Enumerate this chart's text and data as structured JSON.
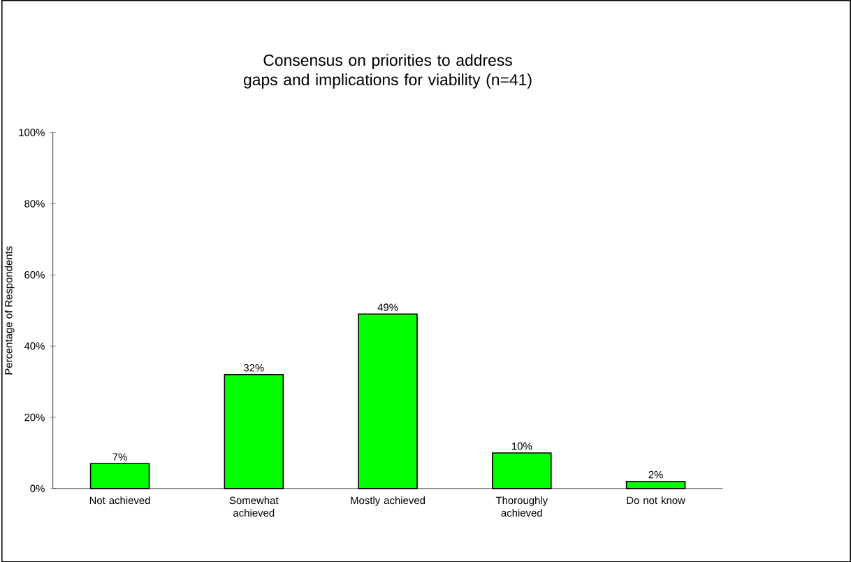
{
  "chart_data": {
    "type": "bar",
    "title": "Consensus on priorities to address gaps and implications for viability (n=41)",
    "ylabel": "Percentage of Respondents",
    "categories": [
      "Not achieved",
      "Somewhat achieved",
      "Mostly achieved",
      "Thoroughly achieved",
      "Do not know"
    ],
    "values": [
      7,
      32,
      49,
      10,
      2
    ],
    "value_labels": [
      "7%",
      "32%",
      "49%",
      "10%",
      "2%"
    ],
    "color": "#00ff00",
    "ylim": [
      0,
      100
    ],
    "yticks": [
      {
        "value": 0,
        "label": "0%"
      },
      {
        "value": 20,
        "label": "20%"
      },
      {
        "value": 40,
        "label": "40%"
      },
      {
        "value": 60,
        "label": "60%"
      },
      {
        "value": 80,
        "label": "80%"
      },
      {
        "value": 100,
        "label": "100%"
      }
    ],
    "grid": false
  }
}
